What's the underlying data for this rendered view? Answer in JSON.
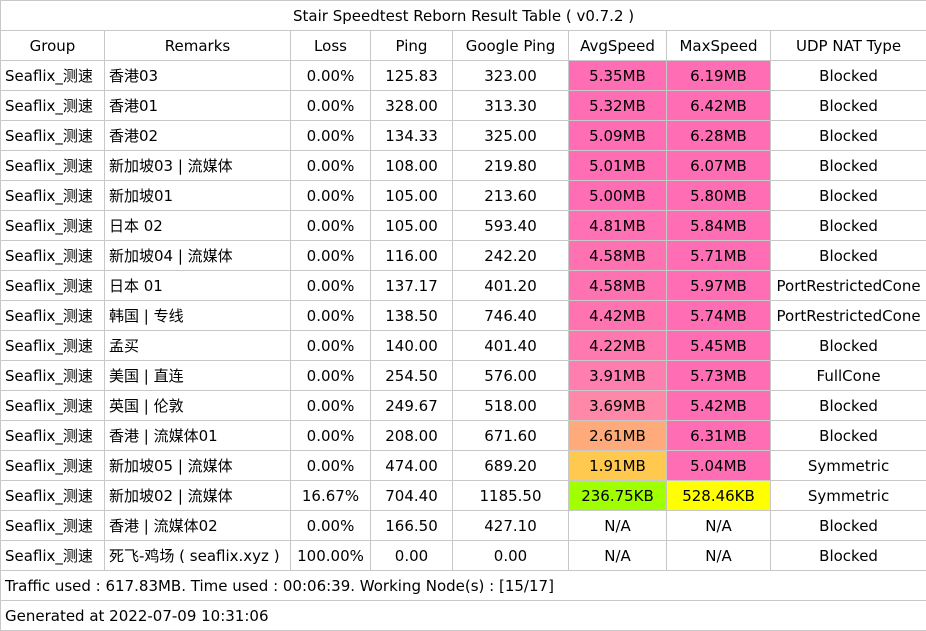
{
  "title": "Stair Speedtest Reborn Result Table ( v0.7.2 )",
  "headers": [
    "Group",
    "Remarks",
    "Loss",
    "Ping",
    "Google Ping",
    "AvgSpeed",
    "MaxSpeed",
    "UDP NAT Type"
  ],
  "rows": [
    {
      "group": "Seaflix_测速",
      "remarks": "香港03",
      "loss": "0.00%",
      "ping": "125.83",
      "google_ping": "323.00",
      "avg": "5.35MB",
      "max": "6.19MB",
      "nat": "Blocked",
      "avg_color": "#ff6eb4",
      "max_color": "#ff6eb4"
    },
    {
      "group": "Seaflix_测速",
      "remarks": "香港01",
      "loss": "0.00%",
      "ping": "328.00",
      "google_ping": "313.30",
      "avg": "5.32MB",
      "max": "6.42MB",
      "nat": "Blocked",
      "avg_color": "#ff6eb4",
      "max_color": "#ff6eb4"
    },
    {
      "group": "Seaflix_测速",
      "remarks": "香港02",
      "loss": "0.00%",
      "ping": "134.33",
      "google_ping": "325.00",
      "avg": "5.09MB",
      "max": "6.28MB",
      "nat": "Blocked",
      "avg_color": "#ff6eb4",
      "max_color": "#ff6eb4"
    },
    {
      "group": "Seaflix_测速",
      "remarks": "新加坡03 | 流媒体",
      "loss": "0.00%",
      "ping": "108.00",
      "google_ping": "219.80",
      "avg": "5.01MB",
      "max": "6.07MB",
      "nat": "Blocked",
      "avg_color": "#ff6eb4",
      "max_color": "#ff6eb4"
    },
    {
      "group": "Seaflix_测速",
      "remarks": "新加坡01",
      "loss": "0.00%",
      "ping": "105.00",
      "google_ping": "213.60",
      "avg": "5.00MB",
      "max": "5.80MB",
      "nat": "Blocked",
      "avg_color": "#ff6eb4",
      "max_color": "#ff6eb4"
    },
    {
      "group": "Seaflix_测速",
      "remarks": "日本 02",
      "loss": "0.00%",
      "ping": "105.00",
      "google_ping": "593.40",
      "avg": "4.81MB",
      "max": "5.84MB",
      "nat": "Blocked",
      "avg_color": "#ff70b4",
      "max_color": "#ff6eb4"
    },
    {
      "group": "Seaflix_测速",
      "remarks": "新加坡04 | 流媒体",
      "loss": "0.00%",
      "ping": "116.00",
      "google_ping": "242.20",
      "avg": "4.58MB",
      "max": "5.71MB",
      "nat": "Blocked",
      "avg_color": "#ff72b2",
      "max_color": "#ff6eb4"
    },
    {
      "group": "Seaflix_测速",
      "remarks": "日本 01",
      "loss": "0.00%",
      "ping": "137.17",
      "google_ping": "401.20",
      "avg": "4.58MB",
      "max": "5.97MB",
      "nat": "PortRestrictedCone",
      "avg_color": "#ff72b2",
      "max_color": "#ff6eb4"
    },
    {
      "group": "Seaflix_测速",
      "remarks": "韩国 | 专线",
      "loss": "0.00%",
      "ping": "138.50",
      "google_ping": "746.40",
      "avg": "4.42MB",
      "max": "5.74MB",
      "nat": "PortRestrictedCone",
      "avg_color": "#ff74b0",
      "max_color": "#ff6eb4"
    },
    {
      "group": "Seaflix_测速",
      "remarks": "孟买",
      "loss": "0.00%",
      "ping": "140.00",
      "google_ping": "401.40",
      "avg": "4.22MB",
      "max": "5.45MB",
      "nat": "Blocked",
      "avg_color": "#ff78b0",
      "max_color": "#ff6eb4"
    },
    {
      "group": "Seaflix_测速",
      "remarks": "美国 | 直连",
      "loss": "0.00%",
      "ping": "254.50",
      "google_ping": "576.00",
      "avg": "3.91MB",
      "max": "5.73MB",
      "nat": "FullCone",
      "avg_color": "#ff7eb0",
      "max_color": "#ff6eb4"
    },
    {
      "group": "Seaflix_测速",
      "remarks": "英国 | 伦敦",
      "loss": "0.00%",
      "ping": "249.67",
      "google_ping": "518.00",
      "avg": "3.69MB",
      "max": "5.42MB",
      "nat": "Blocked",
      "avg_color": "#ff88a8",
      "max_color": "#ff6eb4"
    },
    {
      "group": "Seaflix_测速",
      "remarks": "香港 | 流媒体01",
      "loss": "0.00%",
      "ping": "208.00",
      "google_ping": "671.60",
      "avg": "2.61MB",
      "max": "6.31MB",
      "nat": "Blocked",
      "avg_color": "#ffaa7a",
      "max_color": "#ff6eb4"
    },
    {
      "group": "Seaflix_测速",
      "remarks": "新加坡05 | 流媒体",
      "loss": "0.00%",
      "ping": "474.00",
      "google_ping": "689.20",
      "avg": "1.91MB",
      "max": "5.04MB",
      "nat": "Symmetric",
      "avg_color": "#ffc84e",
      "max_color": "#ff6eb4"
    },
    {
      "group": "Seaflix_测速",
      "remarks": "新加坡02 | 流媒体",
      "loss": "16.67%",
      "ping": "704.40",
      "google_ping": "1185.50",
      "avg": "236.75KB",
      "max": "528.46KB",
      "nat": "Symmetric",
      "avg_color": "#a0ff00",
      "max_color": "#ffff00"
    },
    {
      "group": "Seaflix_测速",
      "remarks": "香港 | 流媒体02",
      "loss": "0.00%",
      "ping": "166.50",
      "google_ping": "427.10",
      "avg": "N/A",
      "max": "N/A",
      "nat": "Blocked",
      "avg_color": "#ffffff",
      "max_color": "#ffffff"
    },
    {
      "group": "Seaflix_测速",
      "remarks": "死飞-鸡场 ( seaflix.xyz )",
      "loss": "100.00%",
      "ping": "0.00",
      "google_ping": "0.00",
      "avg": "N/A",
      "max": "N/A",
      "nat": "Blocked",
      "avg_color": "#ffffff",
      "max_color": "#ffffff"
    }
  ],
  "footer": {
    "traffic": "Traffic used : 617.83MB. Time used : 00:06:39. Working Node(s) : [15/17]",
    "generated": "Generated at 2022-07-09 10:31:06"
  }
}
